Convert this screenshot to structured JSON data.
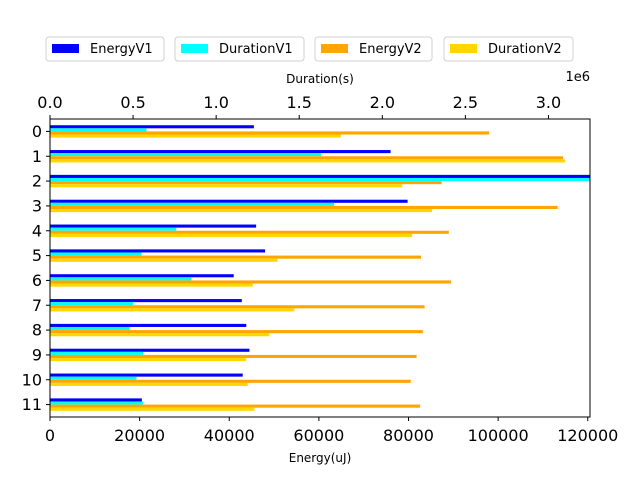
{
  "chart_data": {
    "type": "bar",
    "orientation": "horizontal",
    "categories": [
      "0",
      "1",
      "2",
      "3",
      "4",
      "5",
      "6",
      "7",
      "8",
      "9",
      "10",
      "11"
    ],
    "bottom_axis": {
      "label": "Energy(uJ)",
      "lim": [
        0,
        120500
      ],
      "ticks": [
        0,
        20000,
        40000,
        60000,
        80000,
        100000,
        120000
      ],
      "tick_labels": [
        "0",
        "20000",
        "40000",
        "60000",
        "80000",
        "100000",
        "120000"
      ]
    },
    "top_axis": {
      "label": "Duration(s)",
      "offset_text": "1e6",
      "lim": [
        0,
        3.25
      ],
      "ticks": [
        0,
        0.5,
        1.0,
        1.5,
        2.0,
        2.5,
        3.0
      ],
      "tick_labels": [
        "0.0",
        "0.5",
        "1.0",
        "1.5",
        "2.0",
        "2.5",
        "3.0"
      ]
    },
    "legend_position": "top",
    "series": [
      {
        "name": "EnergyV1",
        "axis": "bottom",
        "color": "#0000ff",
        "values": [
          45500,
          76000,
          120500,
          79800,
          46000,
          48000,
          41000,
          42800,
          43800,
          44500,
          43000,
          20500
        ]
      },
      {
        "name": "DurationV1",
        "axis": "top",
        "color": "#00ffff",
        "values": [
          0.58,
          1.63,
          3.25,
          1.71,
          0.76,
          0.55,
          0.85,
          0.5,
          0.48,
          0.56,
          0.52,
          0.56
        ]
      },
      {
        "name": "EnergyV2",
        "axis": "bottom",
        "color": "#ffa500",
        "values": [
          98000,
          114500,
          87400,
          113300,
          89000,
          82800,
          89500,
          83600,
          83200,
          81800,
          80500,
          82600
        ]
      },
      {
        "name": "DurationV2",
        "axis": "top",
        "color": "#ffd700",
        "values": [
          1.75,
          3.1,
          2.12,
          2.3,
          2.18,
          1.37,
          1.22,
          1.47,
          1.32,
          1.18,
          1.19,
          1.23
        ]
      }
    ]
  }
}
